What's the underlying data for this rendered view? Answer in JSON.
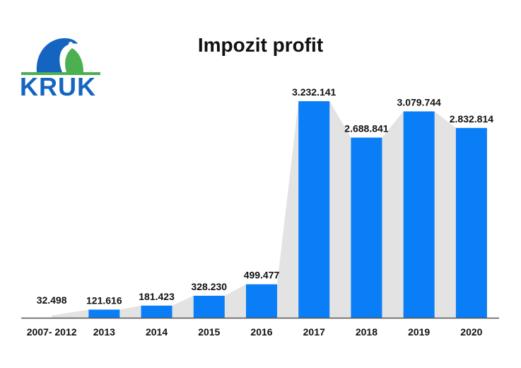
{
  "logo": {
    "text": "KRUK"
  },
  "colors": {
    "bar": "#0a7ef6",
    "area": "#e3e3e3",
    "axis": "#555555",
    "logo_blue": "#1565c0",
    "logo_green": "#4caf50"
  },
  "chart_data": {
    "type": "bar",
    "title": "Impozit profit",
    "categories": [
      "2007- 2012",
      "2013",
      "2014",
      "2015",
      "2016",
      "2017",
      "2018",
      "2019",
      "2020"
    ],
    "values": [
      32498,
      121616,
      181423,
      328230,
      499477,
      3232141,
      2688841,
      3079744,
      2832814
    ],
    "data_labels": [
      "32.498",
      "121.616",
      "181.423",
      "328.230",
      "499.477",
      "3.232.141",
      "2.688.841",
      "3.079.744",
      "2.832.814"
    ],
    "bars_drawn": [
      false,
      true,
      true,
      true,
      true,
      true,
      true,
      true,
      true
    ],
    "background_area": true,
    "grid": false,
    "legend": "none"
  }
}
